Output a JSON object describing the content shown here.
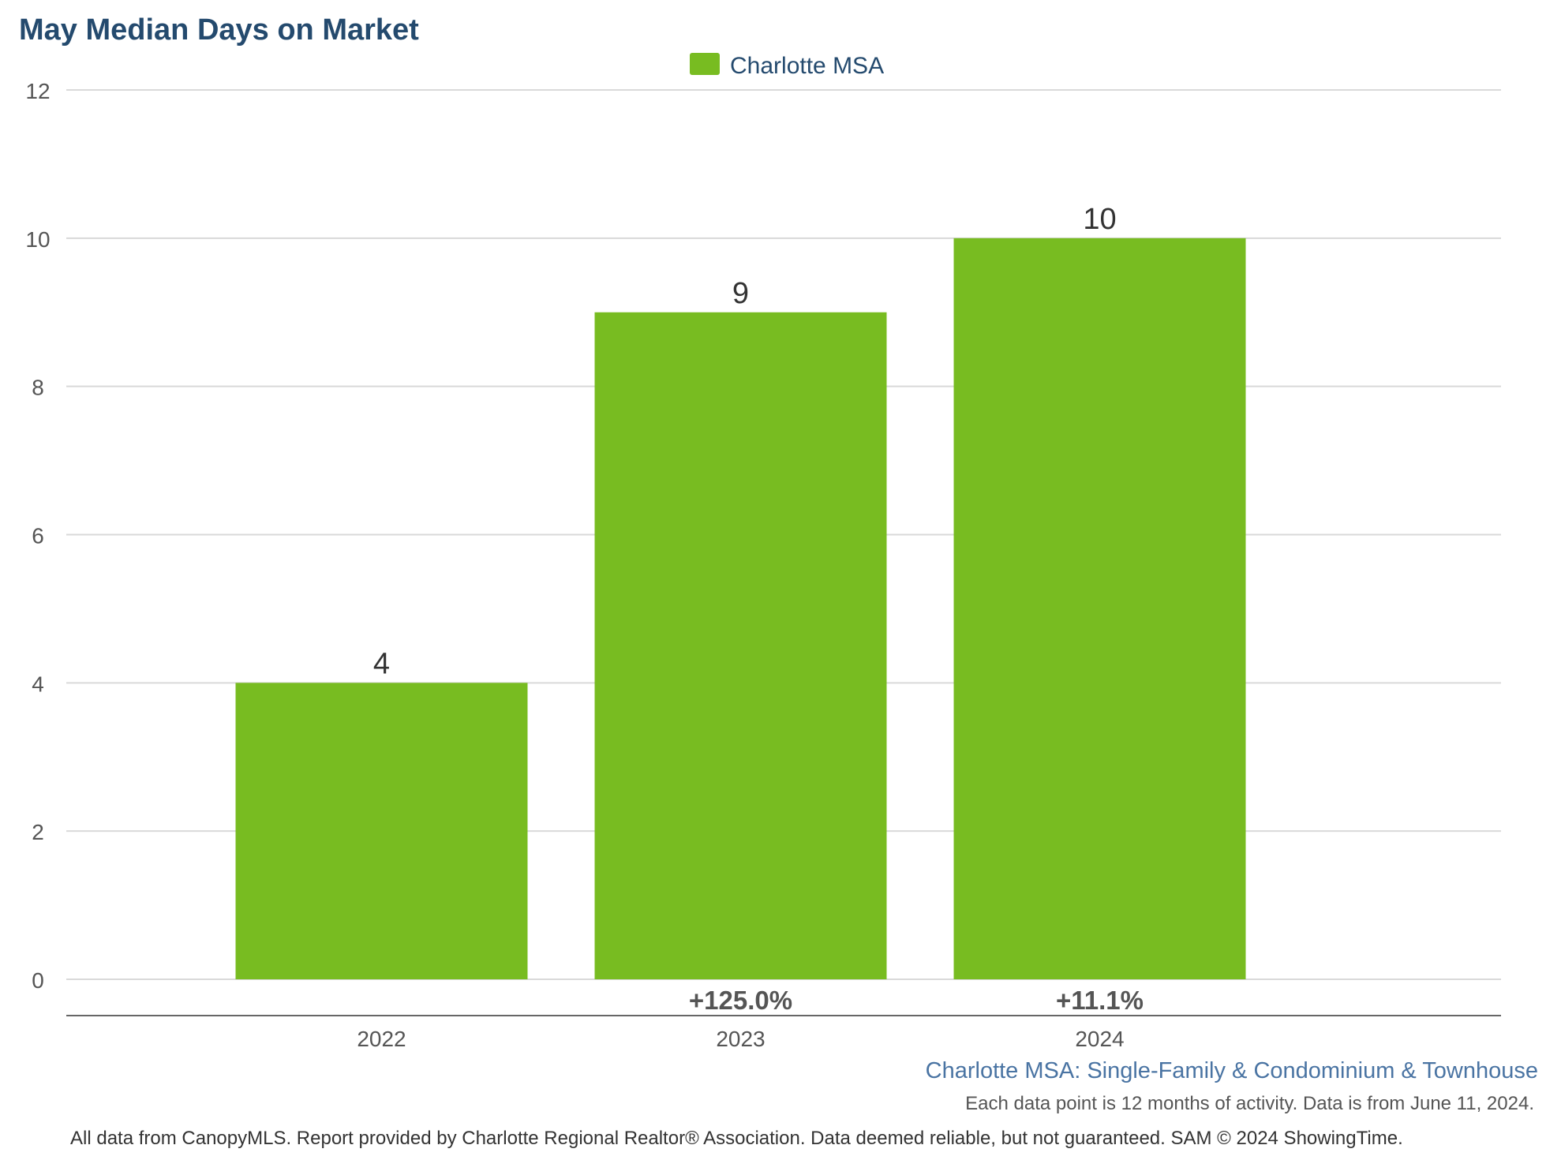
{
  "chart_data": {
    "type": "bar",
    "title": "May Median Days on Market",
    "categories": [
      "2022",
      "2023",
      "2024"
    ],
    "series": [
      {
        "name": "Charlotte MSA",
        "color": "#78bc21",
        "values": [
          4,
          9,
          10
        ]
      }
    ],
    "change_labels": [
      "",
      "+125.0%",
      "+11.1%"
    ],
    "ylim": [
      0,
      12
    ],
    "yticks": [
      0,
      2,
      4,
      6,
      8,
      10,
      12
    ],
    "grid": true,
    "legend_position": "top-center",
    "xlabel": "",
    "ylabel": ""
  },
  "subtitle": "Charlotte MSA: Single-Family & Condominium & Townhouse",
  "note": "Each data point is 12 months of activity. Data is from June 11, 2024.",
  "footer": "All data from CanopyMLS. Report provided by Charlotte Regional Realtor® Association. Data deemed reliable, but not guaranteed. SAM © 2024 ShowingTime."
}
